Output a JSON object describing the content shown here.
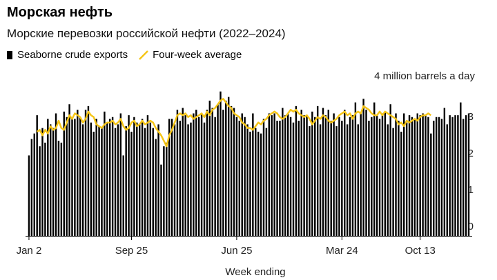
{
  "title": "Морская нефть",
  "subtitle": "Морские перевозки российской нефти (2022–2024)",
  "legend": {
    "bars": "Seaborne crude exports",
    "line": "Four-week average"
  },
  "colors": {
    "bars": "#000000",
    "line": "#f5c518",
    "axis": "#000000"
  },
  "chart_data": {
    "type": "bar",
    "xlabel": "Week ending",
    "ylabel": "",
    "y_unit_label": "4 million barrels a day",
    "ylim": [
      0,
      4
    ],
    "yticks": [
      0,
      1,
      2,
      3
    ],
    "xticks": [
      "Jan 2",
      "Sep 25",
      "Jun 25",
      "Mar 24",
      "Oct 13"
    ],
    "xtick_week_index": [
      0,
      38,
      77,
      116,
      145
    ],
    "grid": false,
    "legend_position": "top-left",
    "series": [
      {
        "name": "Seaborne crude exports",
        "type": "bar",
        "values": [
          2.2,
          2.65,
          2.8,
          3.3,
          2.45,
          2.95,
          2.55,
          3.2,
          3.05,
          2.95,
          3.35,
          2.6,
          2.55,
          3.4,
          3.25,
          3.6,
          3.2,
          3.2,
          3.45,
          3.25,
          3.05,
          3.45,
          3.55,
          3.1,
          2.85,
          3.2,
          3.0,
          2.95,
          3.4,
          3.1,
          3.2,
          3.25,
          2.95,
          3.05,
          3.35,
          2.2,
          3.0,
          3.3,
          2.85,
          3.25,
          3.1,
          3.05,
          3.2,
          2.95,
          3.3,
          3.1,
          2.95,
          2.65,
          3.05,
          1.95,
          2.45,
          2.55,
          3.2,
          3.2,
          3.05,
          3.45,
          3.15,
          3.5,
          3.3,
          3.05,
          3.1,
          3.35,
          3.45,
          3.25,
          3.35,
          3.1,
          3.45,
          3.7,
          3.5,
          3.25,
          3.6,
          3.95,
          3.45,
          3.7,
          3.8,
          3.55,
          3.5,
          3.25,
          3.15,
          3.35,
          3.25,
          3.05,
          2.85,
          3.35,
          2.95,
          2.85,
          2.8,
          3.2,
          2.95,
          3.35,
          3.3,
          3.35,
          3.15,
          3.15,
          3.5,
          3.3,
          3.35,
          3.25,
          3.1,
          3.55,
          3.15,
          3.45,
          3.3,
          3.3,
          3.0,
          3.4,
          3.25,
          3.55,
          3.05,
          3.5,
          3.3,
          3.45,
          3.15,
          3.35,
          3.0,
          3.25,
          3.15,
          3.45,
          3.05,
          3.25,
          3.3,
          3.65,
          3.05,
          3.35,
          3.75,
          3.45,
          3.15,
          3.25,
          3.65,
          3.3,
          3.2,
          3.35,
          3.4,
          3.05,
          3.6,
          2.95,
          3.35,
          3.15,
          2.85,
          3.35,
          3.1,
          3.3,
          3.25,
          3.2,
          3.35,
          3.3,
          3.35,
          3.3,
          3.25,
          2.8,
          3.15,
          3.25,
          3.25,
          3.2,
          3.5,
          3.05,
          3.3,
          3.25,
          3.3,
          3.3,
          3.65,
          3.2,
          3.3,
          3.35
        ]
      },
      {
        "name": "Four-week average",
        "type": "line",
        "start_index": 3,
        "values": [
          2.85,
          2.9,
          2.75,
          2.9,
          2.8,
          3.0,
          2.9,
          2.95,
          3.15,
          2.95,
          2.9,
          3.1,
          3.3,
          3.2,
          3.35,
          3.3,
          3.25,
          3.1,
          3.2,
          3.4,
          3.3,
          3.25,
          3.05,
          3.0,
          2.95,
          3.05,
          3.1,
          3.1,
          3.15,
          3.05,
          3.1,
          3.2,
          3.0,
          2.9,
          2.95,
          3.1,
          3.15,
          3.0,
          3.05,
          3.15,
          3.05,
          3.1,
          3.15,
          3.1,
          2.95,
          2.85,
          2.75,
          2.6,
          2.45,
          2.75,
          2.9,
          3.1,
          3.3,
          3.35,
          3.3,
          3.35,
          3.25,
          3.3,
          3.2,
          3.25,
          3.3,
          3.35,
          3.25,
          3.4,
          3.3,
          3.45,
          3.5,
          3.6,
          3.7,
          3.75,
          3.65,
          3.55,
          3.5,
          3.35,
          3.3,
          3.25,
          3.1,
          3.05,
          2.95,
          2.95,
          2.9,
          3.0,
          3.1,
          3.05,
          3.15,
          3.2,
          3.3,
          3.35,
          3.4,
          3.35,
          3.25,
          3.2,
          3.25,
          3.35,
          3.45,
          3.4,
          3.45,
          3.35,
          3.3,
          3.25,
          3.3,
          3.2,
          3.05,
          3.15,
          3.25,
          3.2,
          3.3,
          3.25,
          3.15,
          3.1,
          3.15,
          3.2,
          3.3,
          3.35,
          3.4,
          3.3,
          3.35,
          3.2,
          3.35,
          3.4,
          3.35,
          3.55,
          3.5,
          3.45,
          3.35,
          3.3,
          3.3,
          3.4,
          3.3,
          3.4,
          3.35,
          3.3,
          3.25,
          3.2,
          3.05,
          3.1,
          3.0,
          3.15,
          3.1,
          3.15,
          3.2,
          3.15,
          3.25,
          3.3,
          3.3,
          3.35,
          3.3
        ]
      }
    ]
  }
}
